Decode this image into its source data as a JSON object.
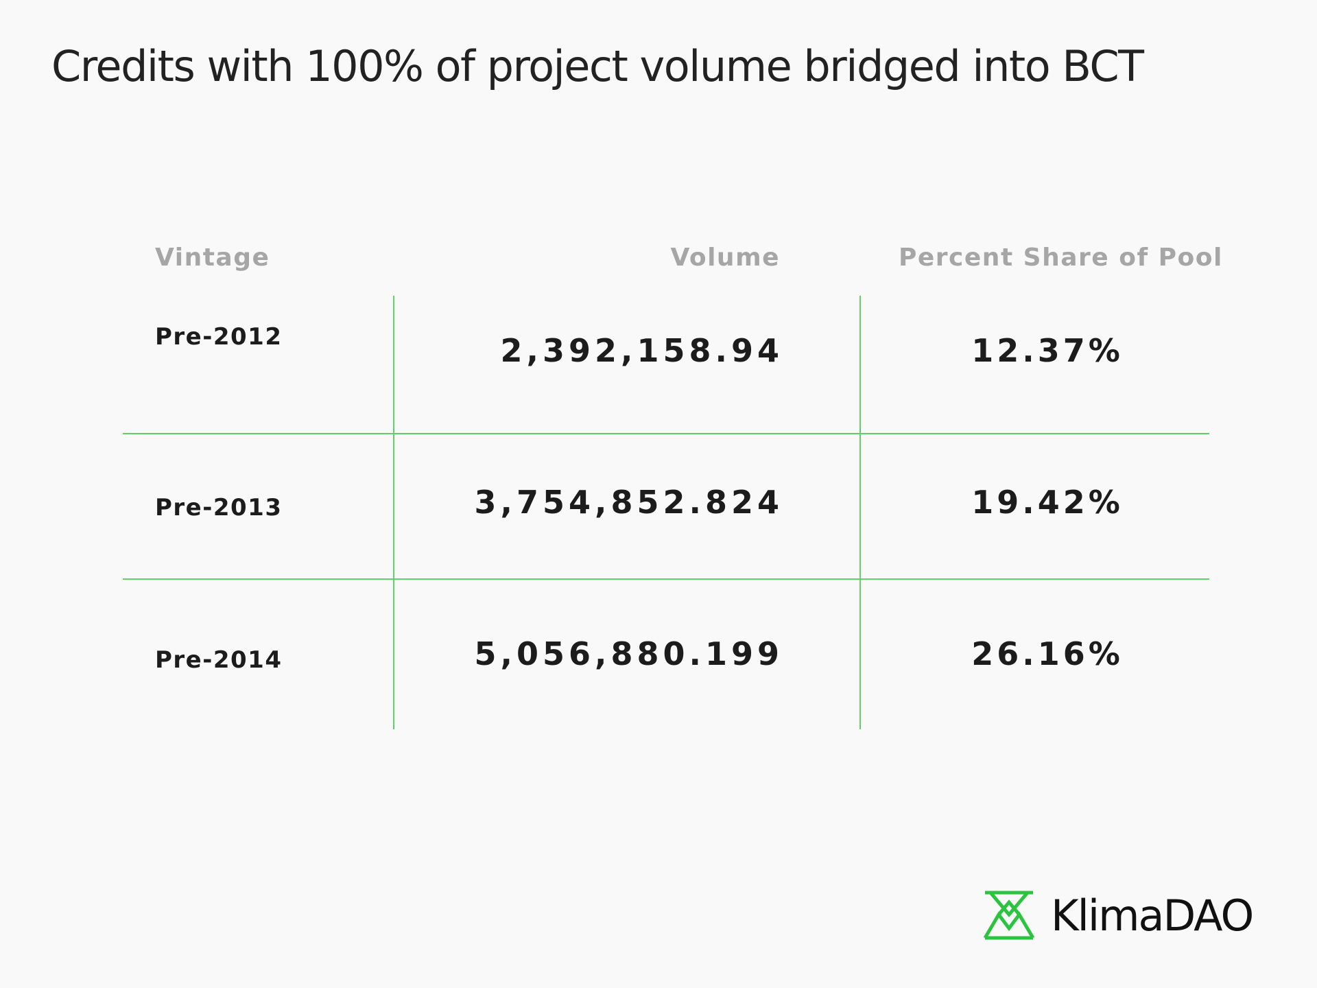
{
  "title": "Credits with 100% of project volume bridged into BCT",
  "chart_data": {
    "type": "table",
    "title": "Credits with 100% of project volume bridged into BCT",
    "columns": [
      "Vintage",
      "Volume",
      "Percent Share of Pool"
    ],
    "rows": [
      {
        "vintage": "Pre-2012",
        "volume": "2,392,158.94",
        "share": "12.37%"
      },
      {
        "vintage": "Pre-2013",
        "volume": "3,754,852.824",
        "share": "19.42%"
      },
      {
        "vintage": "Pre-2014",
        "volume": "5,056,880.199",
        "share": "26.16%"
      }
    ],
    "grid_color": "#5fd36a"
  },
  "brand": {
    "name": "KlimaDAO",
    "logo_icon": "klimadao-logo-icon",
    "accent": "#2bc33f"
  }
}
